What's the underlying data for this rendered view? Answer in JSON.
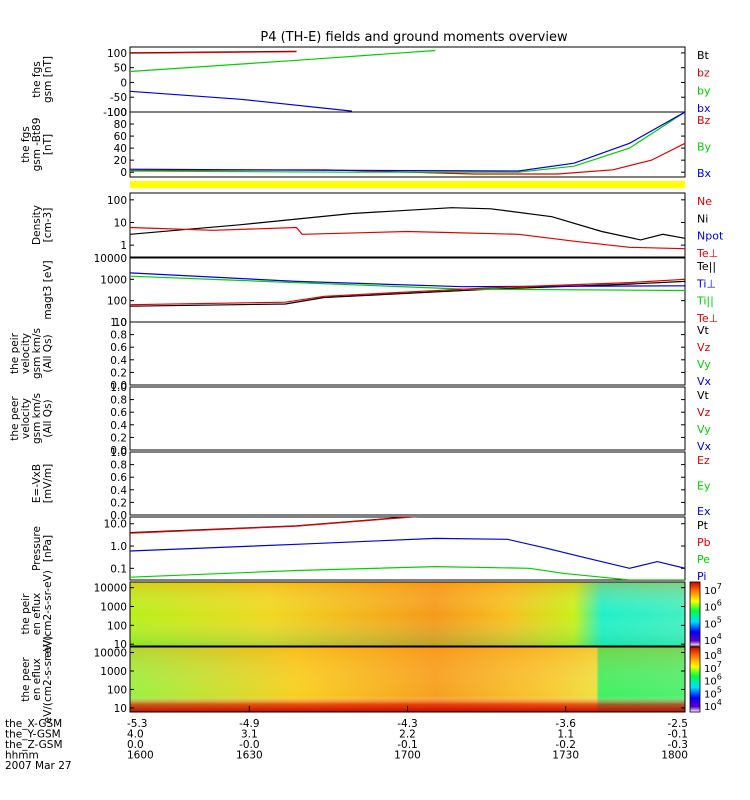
{
  "title": "P4 (TH-E) fields and ground moments overview",
  "colors": {
    "black": "#000000",
    "red": "#e00000",
    "green": "#00d000",
    "blue": "#0000e0",
    "yellow": "#ffff00"
  },
  "chart_data": [
    {
      "type": "line",
      "ylabel": "the fgs gsm [nT]",
      "ylim": [
        -100,
        120
      ],
      "yticks": [
        "100",
        "50",
        "0",
        "-50",
        "-100"
      ],
      "series": [
        {
          "name": "Bt",
          "color": "#000000",
          "x": [
            0,
            0.3
          ],
          "values": [
            100,
            105
          ]
        },
        {
          "name": "bz",
          "color": "#e00000",
          "x": [
            0,
            0.3
          ],
          "values": [
            99,
            104
          ]
        },
        {
          "name": "by",
          "color": "#00d000",
          "x": [
            0,
            0.3,
            0.55
          ],
          "values": [
            37,
            75,
            108
          ]
        },
        {
          "name": "bx",
          "color": "#0000e0",
          "x": [
            0,
            0.2,
            0.4
          ],
          "values": [
            -30,
            -57,
            -97
          ]
        }
      ]
    },
    {
      "type": "line",
      "ylabel": "the fgs gsm -Bt89 [nT]",
      "ylim": [
        -8,
        100
      ],
      "yticks": [
        "100",
        "80",
        "60",
        "40",
        "20",
        "0"
      ],
      "series": [
        {
          "name": "Bz",
          "color": "#e00000",
          "x": [
            0,
            0.35,
            0.62,
            0.77,
            0.87,
            0.94,
            1
          ],
          "values": [
            3,
            4,
            -3,
            -3,
            4,
            20,
            48
          ]
        },
        {
          "name": "By",
          "color": "#00d000",
          "x": [
            0,
            0.4,
            0.7,
            0.8,
            0.9,
            1
          ],
          "values": [
            2,
            0,
            0,
            10,
            40,
            100
          ]
        },
        {
          "name": "Bx",
          "color": "#0000e0",
          "x": [
            0,
            0.4,
            0.7,
            0.8,
            0.9,
            1
          ],
          "values": [
            5,
            3,
            2,
            15,
            48,
            100
          ]
        }
      ]
    },
    {
      "type": "line",
      "ylabel": "Density [cm-3]",
      "yscale": "log",
      "ylim": [
        0.3,
        200
      ],
      "yticks": [
        "100",
        "10",
        "1"
      ],
      "series": [
        {
          "name": "Ne",
          "color": "#e00000",
          "x": [
            0
          ],
          "values": [
            null
          ]
        },
        {
          "name": "Ni",
          "color": "#000000",
          "x": [
            0,
            0.2,
            0.4,
            0.58,
            0.65,
            0.76,
            0.85,
            0.92,
            0.96,
            1
          ],
          "values": [
            3,
            8,
            25,
            45,
            40,
            18,
            4,
            1.7,
            3,
            2
          ]
        },
        {
          "name": "Npot",
          "color": "#0000e0",
          "x": [
            0
          ],
          "values": [
            null
          ]
        },
        {
          "name": "Te⊥",
          "color": "#e00000",
          "x": [
            0,
            0.15,
            0.3,
            0.31,
            0.5,
            0.7,
            0.8,
            0.9,
            1
          ],
          "values": [
            6,
            4.5,
            6,
            3,
            4,
            3,
            1.5,
            0.8,
            0.7
          ]
        }
      ]
    },
    {
      "type": "line",
      "ylabel": "magt3 [eV]",
      "yscale": "log",
      "ylim": [
        10,
        10000
      ],
      "yticks": [
        "10000",
        "1000",
        "100",
        "10"
      ],
      "series": [
        {
          "name": "Te||",
          "color": "#000000",
          "x": [
            0,
            0.28,
            0.35,
            0.65,
            0.9,
            1
          ],
          "values": [
            55,
            70,
            140,
            350,
            600,
            800
          ]
        },
        {
          "name": "Ti⊥",
          "color": "#0000e0",
          "x": [
            0,
            0.3,
            0.6,
            1
          ],
          "values": [
            2000,
            800,
            450,
            500
          ]
        },
        {
          "name": "Ti||",
          "color": "#00d000",
          "x": [
            0,
            0.3,
            0.6,
            1
          ],
          "values": [
            1400,
            700,
            350,
            300
          ]
        },
        {
          "name": "Te⊥",
          "color": "#e00000",
          "x": [
            0,
            0.28,
            0.35,
            0.65,
            0.9,
            1
          ],
          "values": [
            65,
            85,
            160,
            400,
            700,
            1000
          ]
        }
      ]
    },
    {
      "type": "line",
      "ylabel": "the peir velocity gsm km/s (All Qs)",
      "ylim": [
        0,
        1
      ],
      "yticks": [
        "1.0",
        "0.8",
        "0.6",
        "0.4",
        "0.2",
        "0.0"
      ],
      "series": [
        {
          "name": "Vt",
          "color": "#000000"
        },
        {
          "name": "Vz",
          "color": "#e00000"
        },
        {
          "name": "Vy",
          "color": "#00d000"
        },
        {
          "name": "Vx",
          "color": "#0000e0"
        }
      ]
    },
    {
      "type": "line",
      "ylabel": "the peer velocity gsm km/s (All Qs)",
      "ylim": [
        0,
        1
      ],
      "yticks": [
        "1.0",
        "0.8",
        "0.6",
        "0.4",
        "0.2",
        "0.0"
      ],
      "series": [
        {
          "name": "Vt",
          "color": "#000000"
        },
        {
          "name": "Vz",
          "color": "#e00000"
        },
        {
          "name": "Vy",
          "color": "#00d000"
        },
        {
          "name": "Vx",
          "color": "#0000e0"
        }
      ]
    },
    {
      "type": "line",
      "ylabel": "E=-VxB [mV/m]",
      "ylim": [
        0,
        1
      ],
      "yticks": [
        "1.0",
        "0.8",
        "0.6",
        "0.4",
        "0.2",
        "0.0"
      ],
      "series": [
        {
          "name": "Ez",
          "color": "#e00000"
        },
        {
          "name": "Ey",
          "color": "#00d000"
        },
        {
          "name": "Ex",
          "color": "#0000e0"
        }
      ]
    },
    {
      "type": "line",
      "ylabel": "Pressure [nPa]",
      "yscale": "log",
      "ylim": [
        0.03,
        20
      ],
      "yticks": [
        "10.0",
        "1.0",
        "0.1"
      ],
      "series": [
        {
          "name": "Pt",
          "color": "#000000",
          "x": [
            0,
            0.3,
            0.45,
            0.52
          ],
          "values": [
            4,
            8,
            16,
            22
          ]
        },
        {
          "name": "Pb",
          "color": "#e00000",
          "x": [
            0,
            0.3,
            0.45,
            0.52
          ],
          "values": [
            3.8,
            7.8,
            15.5,
            21
          ]
        },
        {
          "name": "Pe",
          "color": "#00d000",
          "x": [
            0,
            0.3,
            0.55,
            0.72,
            0.78,
            0.85,
            0.9,
            1
          ],
          "values": [
            0.04,
            0.08,
            0.12,
            0.1,
            0.06,
            0.04,
            0.03,
            0.03
          ]
        },
        {
          "name": "Pi",
          "color": "#0000e0",
          "x": [
            0,
            0.3,
            0.55,
            0.68,
            0.75,
            0.82,
            0.9,
            0.95,
            1
          ],
          "values": [
            0.6,
            1.2,
            2.2,
            2,
            0.8,
            0.3,
            0.1,
            0.2,
            0.1
          ]
        }
      ]
    },
    {
      "type": "heatmap",
      "ylabel": "the peir en eflux eV/(cm2-s-sr-eV)",
      "yscale": "log",
      "ylim": [
        8,
        20000
      ],
      "yticks": [
        "10000",
        "1000",
        "100",
        "10"
      ],
      "colorbar": {
        "ticks": [
          "10^7",
          "10^6",
          "10^5",
          "10^4"
        ]
      }
    },
    {
      "type": "heatmap",
      "ylabel": "the peer en eflux eV/(cm2-s-sr-eV)",
      "yscale": "log",
      "ylim": [
        6,
        20000
      ],
      "yticks": [
        "10000",
        "1000",
        "100",
        "10"
      ],
      "colorbar": {
        "ticks": [
          "10^8",
          "10^7",
          "10^6",
          "10^5",
          "10^4"
        ]
      }
    }
  ],
  "xaxis": {
    "rows": [
      {
        "name": "the_X-GSM",
        "values": [
          "-5.3",
          "-4.9",
          "-4.3",
          "-3.6",
          "-2.5"
        ]
      },
      {
        "name": "the_Y-GSM",
        "values": [
          "4.0",
          "3.1",
          "2.2",
          "1.1",
          "-0.1"
        ]
      },
      {
        "name": "the_Z-GSM",
        "values": [
          "0.0",
          "-0.0",
          "-0.1",
          "-0.2",
          "-0.3"
        ]
      },
      {
        "name": "hhmm",
        "values": [
          "1600",
          "1630",
          "1700",
          "1730",
          "1800"
        ]
      }
    ],
    "date": "2007 Mar 27"
  }
}
